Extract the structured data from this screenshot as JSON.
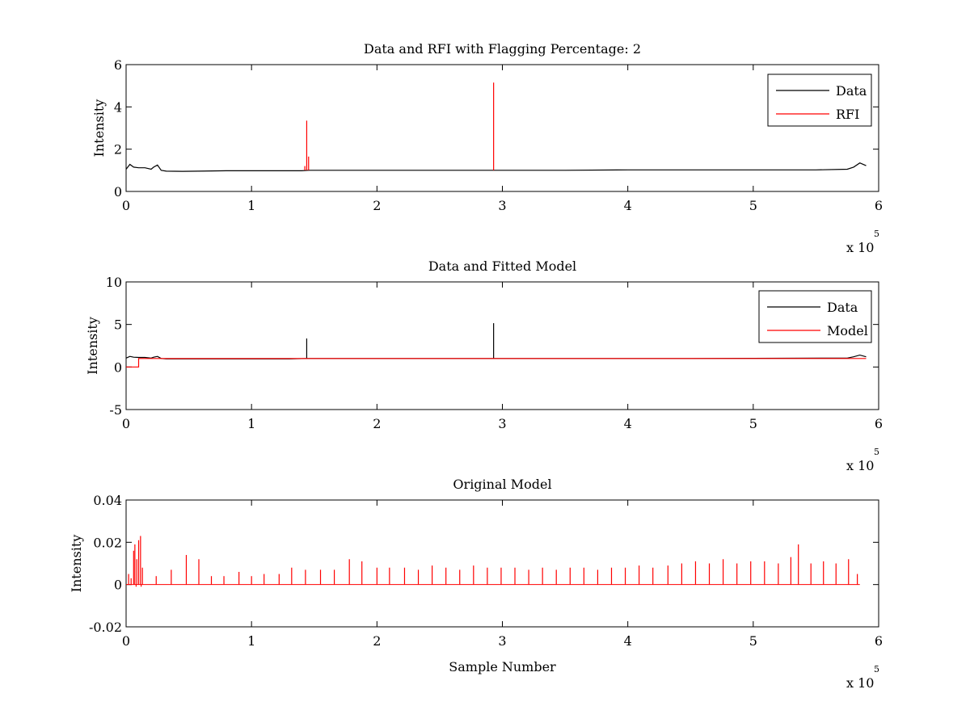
{
  "chart_data": [
    {
      "type": "line",
      "title": "Data and RFI with Flagging Percentage: 2",
      "xlabel": "",
      "ylabel": "Intensity",
      "xlim": [
        0,
        600000
      ],
      "ylim": [
        0,
        6
      ],
      "xticks": [
        0,
        1,
        2,
        3,
        4,
        5,
        6
      ],
      "yticks": [
        0,
        2,
        4,
        6
      ],
      "x_multiplier": "x 10",
      "x_multiplier_exp": "5",
      "grid": false,
      "legend_position": "top-right",
      "series": [
        {
          "name": "Data",
          "color": "#000000",
          "x": [
            0,
            3000,
            6000,
            10000,
            15000,
            20000,
            22000,
            25000,
            28000,
            32000,
            45000,
            80000,
            140000,
            146000,
            150000,
            200000,
            250000,
            300000,
            350000,
            400000,
            450000,
            500000,
            550000,
            575000,
            580000,
            585000,
            590000
          ],
          "y": [
            1.05,
            1.28,
            1.15,
            1.12,
            1.12,
            1.05,
            1.15,
            1.25,
            1.0,
            0.96,
            0.95,
            0.98,
            0.98,
            1.0,
            1.0,
            1.0,
            1.0,
            1.0,
            1.0,
            1.02,
            1.02,
            1.02,
            1.02,
            1.05,
            1.15,
            1.35,
            1.22
          ]
        },
        {
          "name": "RFI",
          "color": "#ff0000",
          "spikes": [
            {
              "x": 144000,
              "y": 3.35
            },
            {
              "x": 145500,
              "y": 1.65
            },
            {
              "x": 142500,
              "y": 1.2
            },
            {
              "x": 293000,
              "y": 5.15
            }
          ]
        }
      ]
    },
    {
      "type": "line",
      "title": "Data and Fitted Model",
      "xlabel": "",
      "ylabel": "Intensity",
      "xlim": [
        0,
        600000
      ],
      "ylim": [
        -5,
        10
      ],
      "xticks": [
        0,
        1,
        2,
        3,
        4,
        5,
        6
      ],
      "yticks": [
        -5,
        0,
        5,
        10
      ],
      "x_multiplier": "x 10",
      "x_multiplier_exp": "5",
      "grid": false,
      "legend_position": "top-right",
      "series": [
        {
          "name": "Data",
          "color": "#000000",
          "x": [
            0,
            3000,
            6000,
            10000,
            15000,
            20000,
            22000,
            25000,
            28000,
            32000,
            80000,
            130000,
            143000,
            150000,
            300000,
            450000,
            575000,
            580000,
            585000,
            590000
          ],
          "y": [
            1.05,
            1.25,
            1.15,
            1.12,
            1.12,
            1.05,
            1.15,
            1.25,
            1.0,
            0.95,
            0.95,
            0.95,
            1.0,
            1.0,
            1.0,
            1.0,
            1.05,
            1.2,
            1.4,
            1.2
          ],
          "spikes": [
            {
              "x": 144000,
              "y": 3.35
            },
            {
              "x": 293000,
              "y": 5.15
            }
          ]
        },
        {
          "name": "Model",
          "color": "#ff0000",
          "x": [
            0,
            10000,
            10000,
            590000
          ],
          "y": [
            0,
            0,
            1.0,
            1.0
          ]
        }
      ]
    },
    {
      "type": "line",
      "title": "Original Model",
      "xlabel": "Sample Number",
      "ylabel": "Intensity",
      "xlim": [
        0,
        600000
      ],
      "ylim": [
        -0.02,
        0.04
      ],
      "xticks": [
        0,
        1,
        2,
        3,
        4,
        5,
        6
      ],
      "yticks": [
        -0.02,
        0,
        0.02,
        0.04
      ],
      "ytick_labels": [
        "-0.02",
        "0",
        "0.02",
        "0.04"
      ],
      "x_multiplier": "x 10",
      "x_multiplier_exp": "5",
      "grid": false,
      "series": [
        {
          "color": "#ff0000",
          "baseline": 0,
          "x_end": 585000,
          "spikes": [
            {
              "x": 2000,
              "y": 0.005
            },
            {
              "x": 4000,
              "y": 0.003
            },
            {
              "x": 6000,
              "y": 0.016
            },
            {
              "x": 7000,
              "y": 0.019
            },
            {
              "x": 8500,
              "y": 0.012
            },
            {
              "x": 10000,
              "y": 0.021
            },
            {
              "x": 11500,
              "y": 0.023
            },
            {
              "x": 13000,
              "y": 0.008
            },
            {
              "x": 24000,
              "y": 0.004
            },
            {
              "x": 36000,
              "y": 0.007
            },
            {
              "x": 48000,
              "y": 0.014
            },
            {
              "x": 58000,
              "y": 0.012
            },
            {
              "x": 68000,
              "y": 0.004
            },
            {
              "x": 78000,
              "y": 0.004
            },
            {
              "x": 90000,
              "y": 0.006
            },
            {
              "x": 100000,
              "y": 0.004
            },
            {
              "x": 110000,
              "y": 0.005
            },
            {
              "x": 122000,
              "y": 0.005
            },
            {
              "x": 132000,
              "y": 0.008
            },
            {
              "x": 143000,
              "y": 0.007
            },
            {
              "x": 155000,
              "y": 0.007
            },
            {
              "x": 166000,
              "y": 0.007
            },
            {
              "x": 178000,
              "y": 0.012
            },
            {
              "x": 188000,
              "y": 0.011
            },
            {
              "x": 200000,
              "y": 0.008
            },
            {
              "x": 210000,
              "y": 0.008
            },
            {
              "x": 222000,
              "y": 0.008
            },
            {
              "x": 233000,
              "y": 0.007
            },
            {
              "x": 244000,
              "y": 0.009
            },
            {
              "x": 255000,
              "y": 0.008
            },
            {
              "x": 266000,
              "y": 0.007
            },
            {
              "x": 277000,
              "y": 0.009
            },
            {
              "x": 288000,
              "y": 0.008
            },
            {
              "x": 299000,
              "y": 0.008
            },
            {
              "x": 310000,
              "y": 0.008
            },
            {
              "x": 321000,
              "y": 0.007
            },
            {
              "x": 332000,
              "y": 0.008
            },
            {
              "x": 343000,
              "y": 0.007
            },
            {
              "x": 354000,
              "y": 0.008
            },
            {
              "x": 365000,
              "y": 0.008
            },
            {
              "x": 376000,
              "y": 0.007
            },
            {
              "x": 387000,
              "y": 0.008
            },
            {
              "x": 398000,
              "y": 0.008
            },
            {
              "x": 409000,
              "y": 0.009
            },
            {
              "x": 420000,
              "y": 0.008
            },
            {
              "x": 432000,
              "y": 0.009
            },
            {
              "x": 443000,
              "y": 0.01
            },
            {
              "x": 454000,
              "y": 0.011
            },
            {
              "x": 465000,
              "y": 0.01
            },
            {
              "x": 476000,
              "y": 0.012
            },
            {
              "x": 487000,
              "y": 0.01
            },
            {
              "x": 498000,
              "y": 0.011
            },
            {
              "x": 509000,
              "y": 0.011
            },
            {
              "x": 520000,
              "y": 0.01
            },
            {
              "x": 530000,
              "y": 0.013
            },
            {
              "x": 536000,
              "y": 0.019
            },
            {
              "x": 546000,
              "y": 0.01
            },
            {
              "x": 556000,
              "y": 0.011
            },
            {
              "x": 566000,
              "y": 0.01
            },
            {
              "x": 576000,
              "y": 0.012
            },
            {
              "x": 583000,
              "y": 0.005
            }
          ],
          "dips": [
            {
              "x": 8000,
              "y": -0.001
            },
            {
              "x": 12000,
              "y": -0.001
            }
          ]
        }
      ]
    }
  ]
}
